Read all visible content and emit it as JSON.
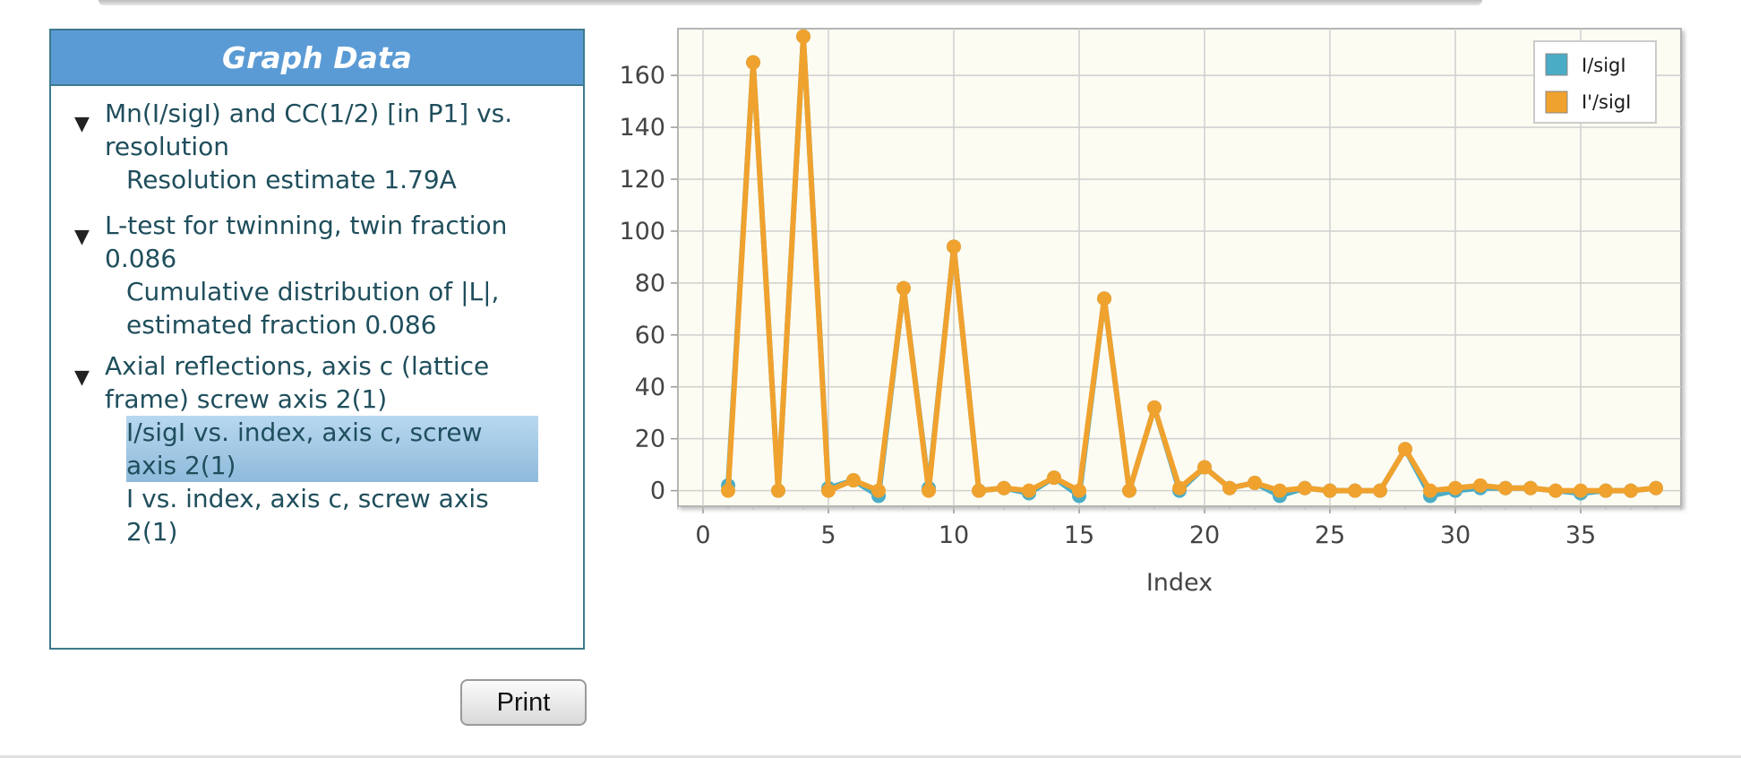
{
  "panel": {
    "title": "Graph Data",
    "groups": [
      {
        "title": "Mn(I/sigI) and CC(1/2) [in P1] vs. resolution",
        "items": [
          "Resolution estimate 1.79A"
        ]
      },
      {
        "title": "L-test for twinning, twin fraction 0.086",
        "items": [
          "Cumulative distribution of |L|, estimated fraction 0.086"
        ]
      },
      {
        "title": "Axial reflections, axis c (lattice frame) screw axis 2(1)",
        "items": [
          "I/sigI vs. index, axis c, screw axis 2(1)",
          "I vs. index, axis c, screw axis 2(1)"
        ]
      }
    ],
    "selected_item": "I/sigI vs. index, axis c, screw axis 2(1)",
    "arrow_glyph": "▼"
  },
  "print_label": "Print",
  "chart_data": {
    "type": "line",
    "xlabel": "Index",
    "ylabel": "",
    "xlim": [
      -1,
      39
    ],
    "ylim": [
      -6,
      178
    ],
    "xticks": [
      0,
      5,
      10,
      15,
      20,
      25,
      30,
      35
    ],
    "yticks": [
      0,
      20,
      40,
      60,
      80,
      100,
      120,
      140,
      160
    ],
    "grid": true,
    "legend_position": "top-right",
    "x": [
      1,
      2,
      3,
      4,
      5,
      6,
      7,
      8,
      9,
      10,
      11,
      12,
      13,
      14,
      15,
      16,
      17,
      18,
      19,
      20,
      21,
      22,
      23,
      24,
      25,
      26,
      27,
      28,
      29,
      30,
      31,
      32,
      33,
      34,
      35,
      36,
      37,
      38
    ],
    "series": [
      {
        "name": "I/sigI",
        "color": "#4bacc6",
        "values": [
          2,
          165,
          0,
          175,
          1,
          4,
          -2,
          78,
          1,
          94,
          0,
          1,
          -1,
          5,
          -2,
          74,
          0,
          32,
          0,
          9,
          1,
          3,
          -2,
          1,
          0,
          0,
          0,
          16,
          -2,
          0,
          1,
          1,
          1,
          0,
          -1,
          0,
          0,
          1
        ]
      },
      {
        "name": "I'/sigI",
        "color": "#f0a22e",
        "values": [
          0,
          165,
          0,
          175,
          0,
          4,
          0,
          78,
          0,
          94,
          0,
          1,
          0,
          5,
          0,
          74,
          0,
          32,
          1,
          9,
          1,
          3,
          0,
          1,
          0,
          0,
          0,
          16,
          0,
          1,
          2,
          1,
          1,
          0,
          0,
          0,
          0,
          1
        ]
      }
    ]
  }
}
